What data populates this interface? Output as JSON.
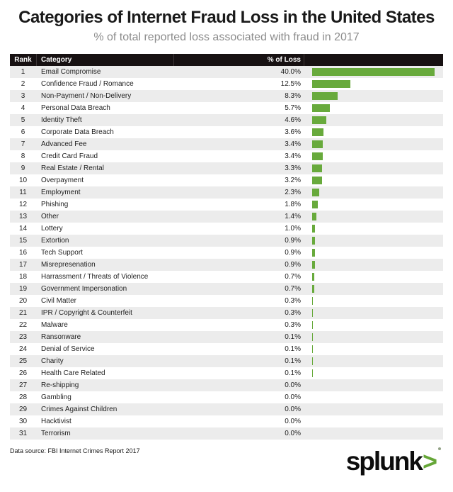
{
  "title": "Categories of Internet Fraud Loss in the United States",
  "subtitle": "% of total reported loss associated with fraud in 2017",
  "table": {
    "columns": [
      "Rank",
      "Category",
      "% of Loss"
    ],
    "rows": [
      {
        "rank": "1",
        "category": "Email Compromise",
        "loss": "40.0%",
        "value": 40.0
      },
      {
        "rank": "2",
        "category": "Confidence Fraud / Romance",
        "loss": "12.5%",
        "value": 12.5
      },
      {
        "rank": "3",
        "category": "Non-Payment / Non-Delivery",
        "loss": "8.3%",
        "value": 8.3
      },
      {
        "rank": "4",
        "category": "Personal Data Breach",
        "loss": "5.7%",
        "value": 5.7
      },
      {
        "rank": "5",
        "category": "Identity Theft",
        "loss": "4.6%",
        "value": 4.6
      },
      {
        "rank": "6",
        "category": "Corporate Data Breach",
        "loss": "3.6%",
        "value": 3.6
      },
      {
        "rank": "7",
        "category": "Advanced Fee",
        "loss": "3.4%",
        "value": 3.4
      },
      {
        "rank": "8",
        "category": "Credit Card Fraud",
        "loss": "3.4%",
        "value": 3.4
      },
      {
        "rank": "9",
        "category": "Real Estate / Rental",
        "loss": "3.3%",
        "value": 3.3
      },
      {
        "rank": "10",
        "category": "Overpayment",
        "loss": "3.2%",
        "value": 3.2
      },
      {
        "rank": "11",
        "category": "Employment",
        "loss": "2.3%",
        "value": 2.3
      },
      {
        "rank": "12",
        "category": "Phishing",
        "loss": "1.8%",
        "value": 1.8
      },
      {
        "rank": "13",
        "category": "Other",
        "loss": "1.4%",
        "value": 1.4
      },
      {
        "rank": "14",
        "category": "Lottery",
        "loss": "1.0%",
        "value": 1.0
      },
      {
        "rank": "15",
        "category": "Extortion",
        "loss": "0.9%",
        "value": 0.9
      },
      {
        "rank": "16",
        "category": "Tech Support",
        "loss": "0.9%",
        "value": 0.9
      },
      {
        "rank": "17",
        "category": "Misrepresenation",
        "loss": "0.9%",
        "value": 0.9
      },
      {
        "rank": "18",
        "category": "Harrassment / Threats of Violence",
        "loss": "0.7%",
        "value": 0.7
      },
      {
        "rank": "19",
        "category": "Government Impersonation",
        "loss": "0.7%",
        "value": 0.7
      },
      {
        "rank": "20",
        "category": "Civil Matter",
        "loss": "0.3%",
        "value": 0.3
      },
      {
        "rank": "21",
        "category": "IPR / Copyright & Counterfeit",
        "loss": "0.3%",
        "value": 0.3
      },
      {
        "rank": "22",
        "category": "Malware",
        "loss": "0.3%",
        "value": 0.3
      },
      {
        "rank": "23",
        "category": "Ransonware",
        "loss": "0.1%",
        "value": 0.1
      },
      {
        "rank": "24",
        "category": "Denial of Service",
        "loss": "0.1%",
        "value": 0.1
      },
      {
        "rank": "25",
        "category": "Charity",
        "loss": "0.1%",
        "value": 0.1
      },
      {
        "rank": "26",
        "category": "Health Care Related",
        "loss": "0.1%",
        "value": 0.1
      },
      {
        "rank": "27",
        "category": "Re-shipping",
        "loss": "0.0%",
        "value": 0.0
      },
      {
        "rank": "28",
        "category": "Gambling",
        "loss": "0.0%",
        "value": 0.0
      },
      {
        "rank": "29",
        "category": "Crimes Against Children",
        "loss": "0.0%",
        "value": 0.0
      },
      {
        "rank": "30",
        "category": "Hacktivist",
        "loss": "0.0%",
        "value": 0.0
      },
      {
        "rank": "31",
        "category": "Terrorism",
        "loss": "0.0%",
        "value": 0.0
      }
    ]
  },
  "footer": {
    "source": "Data source: FBI Internet Crimes Report 2017",
    "logo_word": "splunk",
    "logo_chevron": ">"
  },
  "colors": {
    "bar_green": "#68AA3C",
    "logo_green": "#65A637",
    "header_bg": "#171112",
    "row_stripe": "#ECECEC",
    "subtitle_gray": "#8D8D8D"
  },
  "chart_data": {
    "type": "bar",
    "orientation": "horizontal",
    "title": "Categories of Internet Fraud Loss in the United States",
    "subtitle": "% of total reported loss associated with fraud in 2017",
    "xlabel": "% of Loss",
    "ylabel": "Category",
    "xlim": [
      0,
      40
    ],
    "grid": false,
    "legend": false,
    "categories": [
      "Email Compromise",
      "Confidence Fraud / Romance",
      "Non-Payment / Non-Delivery",
      "Personal Data Breach",
      "Identity Theft",
      "Corporate Data Breach",
      "Advanced Fee",
      "Credit Card Fraud",
      "Real Estate / Rental",
      "Overpayment",
      "Employment",
      "Phishing",
      "Other",
      "Lottery",
      "Extortion",
      "Tech Support",
      "Misrepresenation",
      "Harrassment / Threats of Violence",
      "Government Impersonation",
      "Civil Matter",
      "IPR / Copyright & Counterfeit",
      "Malware",
      "Ransonware",
      "Denial of Service",
      "Charity",
      "Health Care Related",
      "Re-shipping",
      "Gambling",
      "Crimes Against Children",
      "Hacktivist",
      "Terrorism"
    ],
    "values": [
      40.0,
      12.5,
      8.3,
      5.7,
      4.6,
      3.6,
      3.4,
      3.4,
      3.3,
      3.2,
      2.3,
      1.8,
      1.4,
      1.0,
      0.9,
      0.9,
      0.9,
      0.7,
      0.7,
      0.3,
      0.3,
      0.3,
      0.1,
      0.1,
      0.1,
      0.1,
      0.0,
      0.0,
      0.0,
      0.0,
      0.0
    ],
    "source_note": "Data source: FBI Internet Crimes Report 2017"
  }
}
